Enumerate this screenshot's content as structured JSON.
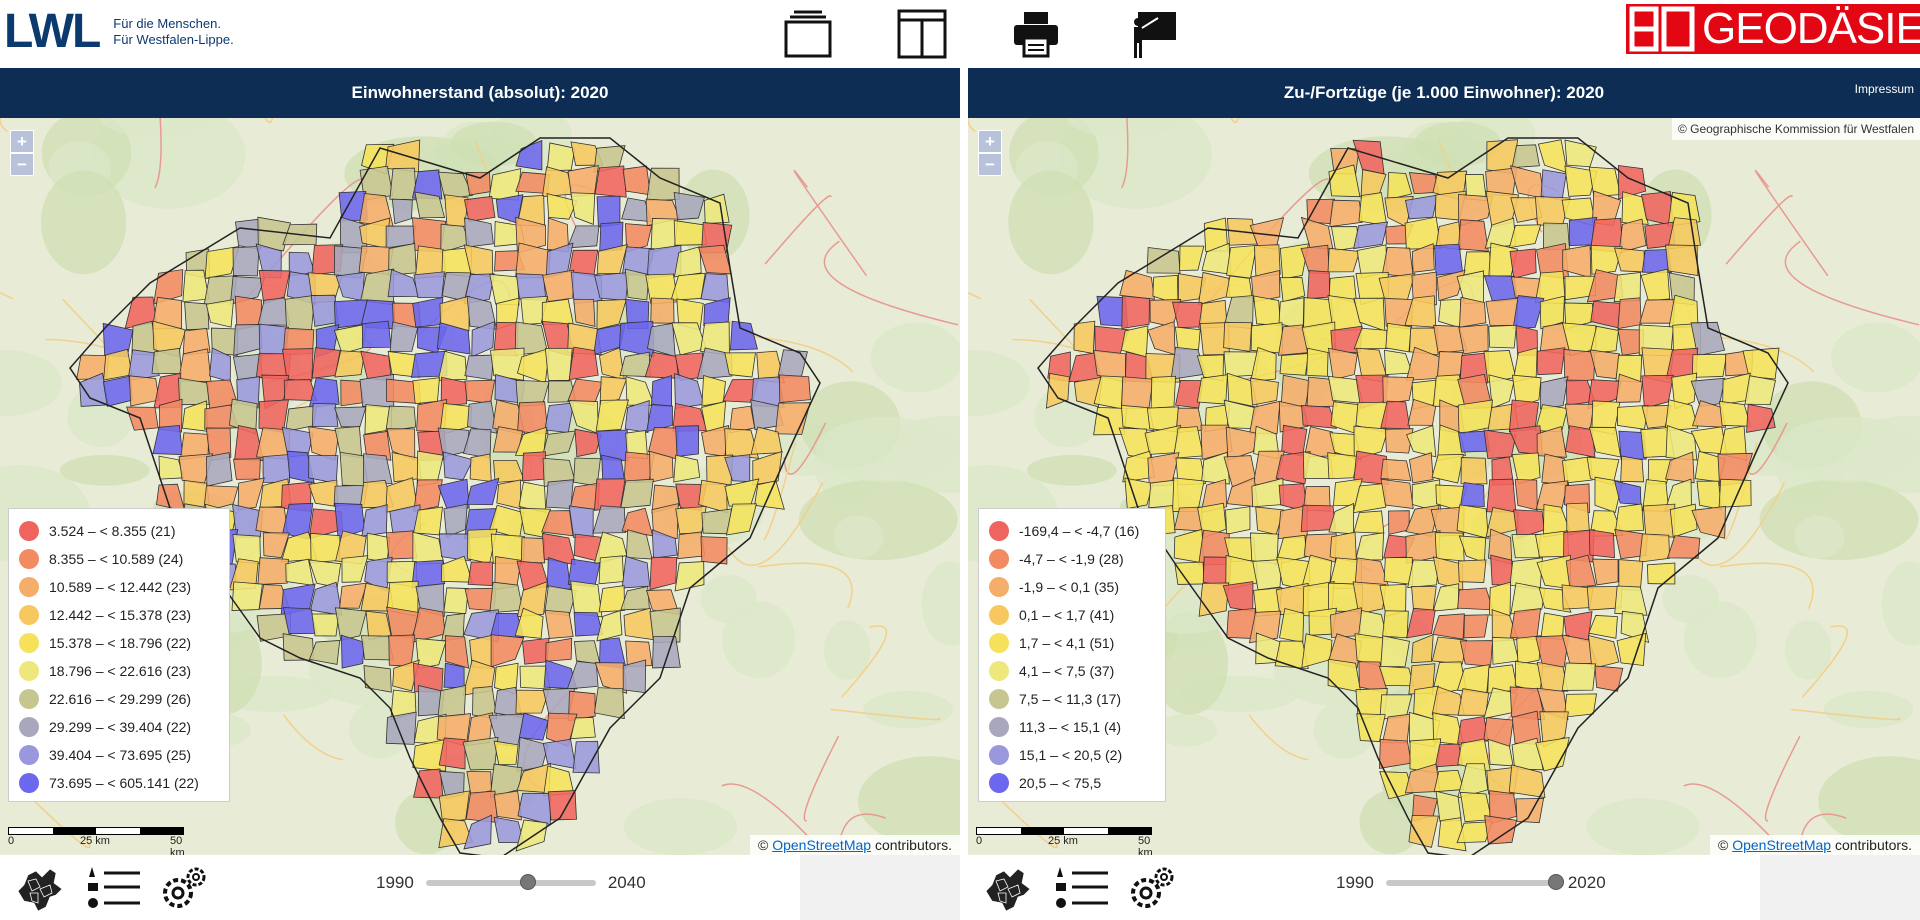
{
  "header": {
    "lwl_mark": "LWL",
    "lwl_claim_1": "Für die Menschen.",
    "lwl_claim_2": "Für Westfalen-Lippe.",
    "geo_logo": "GEODÄSIE",
    "tools": [
      "single-view-icon",
      "split-view-icon",
      "printer-icon",
      "presentation-icon"
    ]
  },
  "left": {
    "title": "Einwohnerstand (absolut): 2020",
    "legend": [
      {
        "label": "3.524 – < 8.355 (21)",
        "color": "#f0645f"
      },
      {
        "label": "8.355 – < 10.589 (24)",
        "color": "#f28a62"
      },
      {
        "label": "10.589 – < 12.442 (23)",
        "color": "#f5ad6a"
      },
      {
        "label": "12.442 – < 15.378 (23)",
        "color": "#f7c85f"
      },
      {
        "label": "15.378 – < 18.796 (22)",
        "color": "#f5e25a"
      },
      {
        "label": "18.796 – < 22.616 (23)",
        "color": "#eee87c"
      },
      {
        "label": "22.616 – < 29.299 (26)",
        "color": "#c7c690"
      },
      {
        "label": "29.299 – < 39.404 (22)",
        "color": "#a9a7bd"
      },
      {
        "label": "39.404 – < 73.695 (25)",
        "color": "#9a98dc"
      },
      {
        "label": "73.695 – < 605.141 (22)",
        "color": "#6b67ee"
      }
    ],
    "slider": {
      "min": "1990",
      "max": "2040",
      "value_fraction": 0.6
    }
  },
  "right": {
    "title": "Zu-/Fortzüge (je 1.000 Einwohner): 2020",
    "impressum": "Impressum",
    "copyright": "© Geographische Kommission für Westfalen",
    "legend": [
      {
        "label": "-169,4 – < -4,7 (16)",
        "color": "#f0645f"
      },
      {
        "label": "-4,7 – < -1,9 (28)",
        "color": "#f28a62"
      },
      {
        "label": "-1,9 – < 0,1 (35)",
        "color": "#f5ad6a"
      },
      {
        "label": "0,1 – < 1,7 (41)",
        "color": "#f7c85f"
      },
      {
        "label": "1,7 – < 4,1 (51)",
        "color": "#f5e25a"
      },
      {
        "label": "4,1 – < 7,5 (37)",
        "color": "#eee87c"
      },
      {
        "label": "7,5 – < 11,3 (17)",
        "color": "#c7c690"
      },
      {
        "label": "11,3 – < 15,1 (4)",
        "color": "#a9a7bd"
      },
      {
        "label": "15,1 – < 20,5 (2)",
        "color": "#9a98dc"
      },
      {
        "label": "20,5 – < 75,5",
        "color": "#6b67ee"
      }
    ],
    "slider": {
      "min": "1990",
      "max": "2020",
      "value_fraction": 1.0
    }
  },
  "map": {
    "zoom_in": "+",
    "zoom_out": "−",
    "scale_0": "0",
    "scale_25": "25 km",
    "scale_50": "50 km",
    "attrib_prefix": "© ",
    "attrib_link": "OpenStreetMap",
    "attrib_suffix": " contributors."
  }
}
